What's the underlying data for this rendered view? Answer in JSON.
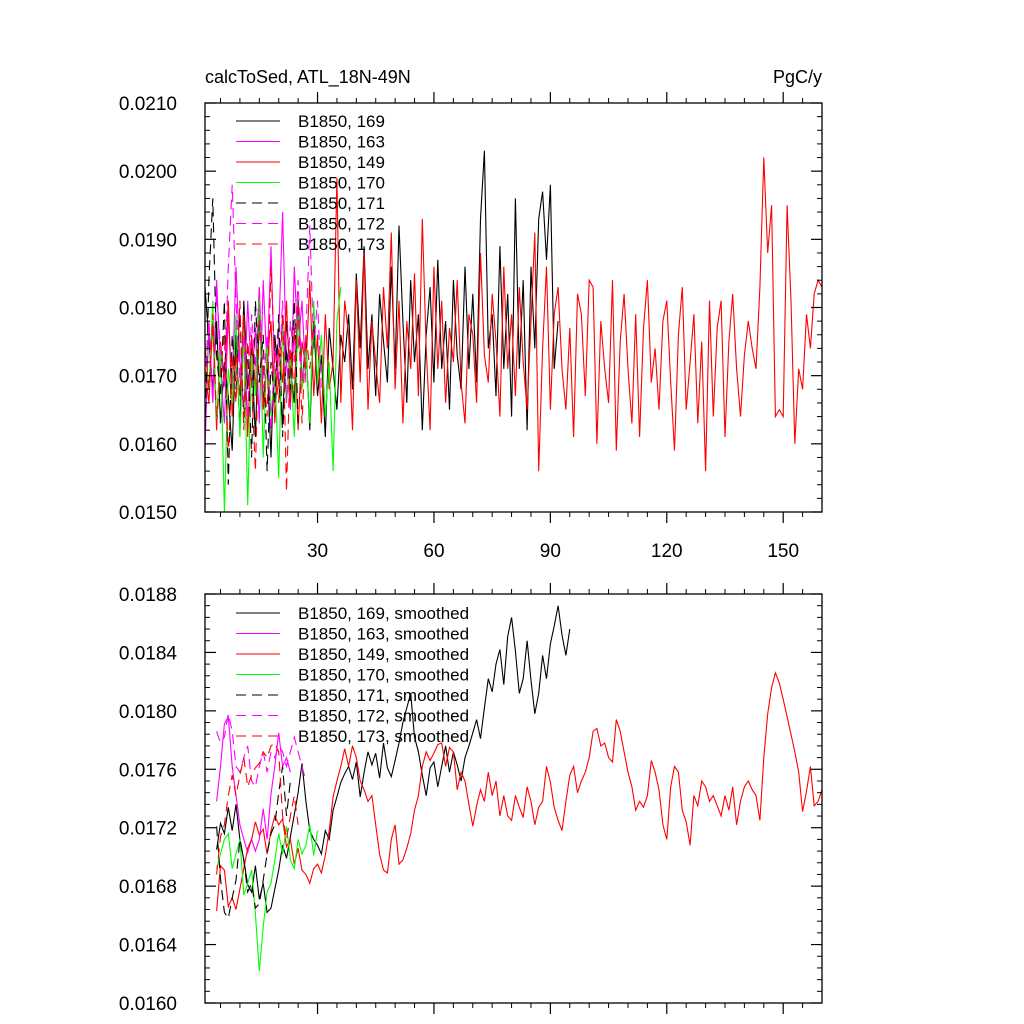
{
  "figure": {
    "title_left": "calcToSed, ATL_18N-49N",
    "title_right": "PgC/y"
  },
  "chart_data": [
    {
      "type": "line",
      "title": "calcToSed, ATL_18N-49N",
      "units": "PgC/y",
      "xlim": [
        1,
        160
      ],
      "ylim": [
        0.015,
        0.021
      ],
      "xticks": [
        30,
        60,
        90,
        120,
        150
      ],
      "xtick_labels": [
        "30",
        "60",
        "90",
        "120",
        "150"
      ],
      "yticks": [
        0.015,
        0.016,
        0.017,
        0.018,
        0.019,
        0.02,
        0.021
      ],
      "ytick_labels": [
        "0.0150",
        "0.0160",
        "0.0170",
        "0.0180",
        "0.0190",
        "0.0200",
        "0.0210"
      ],
      "legend_position": "top-left",
      "series": [
        {
          "name": "B1850, 169",
          "color": "#000000",
          "dash": "solid",
          "x_start": 1,
          "values": [
            0.0183,
            0.0175,
            0.0168,
            0.0178,
            0.0163,
            0.0172,
            0.0167,
            0.0159,
            0.0176,
            0.0162,
            0.0181,
            0.0168,
            0.0174,
            0.0161,
            0.0179,
            0.0166,
            0.0172,
            0.0158,
            0.0176,
            0.0169,
            0.0163,
            0.0178,
            0.0171,
            0.0166,
            0.0181,
            0.0169,
            0.0175,
            0.0162,
            0.0178,
            0.0167,
            0.0173,
            0.0161,
            0.0177,
            0.0171,
            0.0165,
            0.0176,
            0.0172,
            0.0179,
            0.0168,
            0.0185,
            0.0174,
            0.0189,
            0.0171,
            0.0179,
            0.0167,
            0.0182,
            0.0175,
            0.0169,
            0.0186,
            0.0171,
            0.0192,
            0.0178,
            0.0166,
            0.0184,
            0.0172,
            0.0179,
            0.0162,
            0.0176,
            0.0183,
            0.0169,
            0.0187,
            0.0171,
            0.0178,
            0.0165,
            0.0184,
            0.0173,
            0.0168,
            0.0186,
            0.0171,
            0.0182,
            0.0169,
            0.0193,
            0.0203,
            0.0174,
            0.0179,
            0.0167,
            0.0189,
            0.0171,
            0.0182,
            0.0164,
            0.0196,
            0.0171,
            0.0184,
            0.0162,
            0.0186,
            0.0174,
            0.0193,
            0.0197,
            0.0187,
            0.0198,
            0.0171,
            0.0178
          ]
        },
        {
          "name": "B1850, 163",
          "color": "#ff00ff",
          "dash": "solid",
          "x_start": 1,
          "values": [
            0.0159,
            0.0178,
            0.0166,
            0.0184,
            0.0171,
            0.0163,
            0.0179,
            0.0168,
            0.0186,
            0.0172,
            0.0165,
            0.0181,
            0.0169,
            0.0177,
            0.0163,
            0.0184,
            0.0171,
            0.0189,
            0.0168,
            0.0176,
            0.0194,
            0.0172,
            0.0165,
            0.0186,
            0.0174,
            0.0181,
            0.0169
          ]
        },
        {
          "name": "B1850, 149",
          "color": "#ff0000",
          "dash": "solid",
          "x_start": 1,
          "values": [
            0.0171,
            0.0166,
            0.0178,
            0.0162,
            0.0175,
            0.0169,
            0.0181,
            0.0164,
            0.0173,
            0.0167,
            0.0179,
            0.0161,
            0.0176,
            0.0168,
            0.0183,
            0.0165,
            0.0172,
            0.0178,
            0.0163,
            0.0174,
            0.0169,
            0.0181,
            0.0166,
            0.0177,
            0.0162,
            0.0175,
            0.0171,
            0.0184,
            0.0167,
            0.0176,
            0.0163,
            0.0179,
            0.0168,
            0.0172,
            0.0199,
            0.0166,
            0.0181,
            0.0176,
            0.0162,
            0.0184,
            0.0169,
            0.0188,
            0.0165,
            0.0178,
            0.0172,
            0.0166,
            0.0183,
            0.0174,
            0.0191,
            0.0168,
            0.0181,
            0.0163,
            0.0178,
            0.0171,
            0.0185,
            0.0167,
            0.0193,
            0.0174,
            0.0162,
            0.0186,
            0.0171,
            0.0181,
            0.0166,
            0.0177,
            0.0172,
            0.0184,
            0.0169,
            0.0163,
            0.0179,
            0.0176,
            0.0166,
            0.0188,
            0.0173,
            0.0169,
            0.0182,
            0.0175,
            0.0164,
            0.0186,
            0.0171,
            0.0179,
            0.0167,
            0.0183,
            0.0172,
            0.0165,
            0.0178,
            0.0191,
            0.0156,
            0.0174,
            0.0186,
            0.0165,
            0.0179,
            0.0183,
            0.0171,
            0.0165,
            0.0177,
            0.0161,
            0.0182,
            0.0179,
            0.0167,
            0.0184,
            0.0183,
            0.016,
            0.0178,
            0.0171,
            0.0166,
            0.0184,
            0.0159,
            0.0175,
            0.0182,
            0.0171,
            0.0163,
            0.0179,
            0.0161,
            0.0177,
            0.0184,
            0.0169,
            0.0174,
            0.0165,
            0.0178,
            0.0181,
            0.0169,
            0.0159,
            0.0176,
            0.0183,
            0.0165,
            0.0172,
            0.0179,
            0.0163,
            0.0175,
            0.0156,
            0.0181,
            0.0164,
            0.0177,
            0.0181,
            0.0161,
            0.0175,
            0.0182,
            0.0171,
            0.0164,
            0.0173,
            0.0178,
            0.0174,
            0.0171,
            0.0183,
            0.0202,
            0.0188,
            0.0195,
            0.0164,
            0.0165,
            0.0164,
            0.0195,
            0.0181,
            0.016,
            0.0171,
            0.0168,
            0.0179,
            0.0174,
            0.0182,
            0.0184,
            0.0183
          ]
        },
        {
          "name": "B1850, 170",
          "color": "#00ff00",
          "dash": "solid",
          "x_start": 1,
          "values": [
            0.0175,
            0.0168,
            0.0181,
            0.0163,
            0.0174,
            0.015,
            0.0171,
            0.0166,
            0.0179,
            0.0161,
            0.0176,
            0.0151,
            0.0173,
            0.0167,
            0.0182,
            0.0158,
            0.0175,
            0.0164,
            0.0171,
            0.0155,
            0.0178,
            0.0166,
            0.0173,
            0.0161,
            0.0179,
            0.0168,
            0.0174,
            0.0163,
            0.0181,
            0.0169,
            0.0176,
            0.0164,
            0.0172,
            0.0156,
            0.0178,
            0.0183
          ]
        },
        {
          "name": "B1850, 171",
          "color": "#000000",
          "dash": "dash",
          "x_start": 1,
          "values": [
            0.0162,
            0.0184,
            0.0196,
            0.0173,
            0.0167,
            0.0181,
            0.0154,
            0.0176,
            0.0168,
            0.0179,
            0.0163,
            0.0174,
            0.0158,
            0.0181,
            0.0169,
            0.0176,
            0.0156,
            0.0172,
            0.0166,
            0.0179,
            0.0161,
            0.0174,
            0.0168,
            0.0181,
            0.0163
          ]
        },
        {
          "name": "B1850, 172",
          "color": "#ff00ff",
          "dash": "dash",
          "x_start": 1,
          "values": [
            0.0169,
            0.0178,
            0.0166,
            0.0182,
            0.0174,
            0.0168,
            0.0186,
            0.0198,
            0.0181,
            0.0169,
            0.0176,
            0.0164,
            0.0179,
            0.0171,
            0.0183,
            0.0168,
            0.0176,
            0.0162,
            0.0174,
            0.0169,
            0.0181,
            0.0166,
            0.0178,
            0.0172,
            0.0184,
            0.0169,
            0.0176,
            0.0192,
            0.0174,
            0.0181,
            0.0168
          ]
        },
        {
          "name": "B1850, 173",
          "color": "#ff0000",
          "dash": "dash",
          "x_start": 1,
          "values": [
            0.0174,
            0.0168,
            0.0179,
            0.0163,
            0.0171,
            0.0176,
            0.0158,
            0.0173,
            0.0166,
            0.0181,
            0.0162,
            0.0175,
            0.0169,
            0.0156,
            0.0178,
            0.0171,
            0.0164,
            0.0186,
            0.0172,
            0.0166,
            0.0179,
            0.0153,
            0.0174,
            0.0168,
            0.0181,
            0.0163,
            0.0176,
            0.0171,
            0.0178
          ]
        }
      ]
    },
    {
      "type": "line",
      "xlim": [
        1,
        160
      ],
      "ylim": [
        0.016,
        0.0188
      ],
      "xticks": [
        30,
        60,
        90,
        120,
        150
      ],
      "yticks": [
        0.016,
        0.0164,
        0.0168,
        0.0172,
        0.0176,
        0.018,
        0.0184,
        0.0188
      ],
      "ytick_labels": [
        "0.0160",
        "0.0164",
        "0.0168",
        "0.0172",
        "0.0176",
        "0.0180",
        "0.0184",
        "0.0188"
      ],
      "legend_position": "top-left",
      "series": [
        {
          "name": "B1850, 169, smoothed",
          "color": "#000000",
          "dash": "solid",
          "x_start": 4,
          "values": [
            0.01705,
            0.01723,
            0.01716,
            0.01734,
            0.01718,
            0.01736,
            0.01712,
            0.01698,
            0.01681,
            0.01676,
            0.01694,
            0.01671,
            0.01682,
            0.01662,
            0.01665,
            0.01678,
            0.01691,
            0.01708,
            0.01699,
            0.01714,
            0.01729,
            0.01744,
            0.01764,
            0.01738,
            0.01718,
            0.01712,
            0.01708,
            0.01702,
            0.01718,
            0.01712,
            0.01732,
            0.01741,
            0.01751,
            0.01757,
            0.01762,
            0.01753,
            0.01765,
            0.01741,
            0.01758,
            0.01772,
            0.01763,
            0.01771,
            0.01754,
            0.01778,
            0.01761,
            0.01755,
            0.01766,
            0.01778,
            0.01792,
            0.01802,
            0.01812,
            0.01782,
            0.01772,
            0.01756,
            0.01742,
            0.01761,
            0.01765,
            0.01748,
            0.01762,
            0.01776,
            0.01758,
            0.01772,
            0.01763,
            0.01752,
            0.01768,
            0.01776,
            0.01785,
            0.01794,
            0.01781,
            0.01802,
            0.01822,
            0.01813,
            0.01832,
            0.01842,
            0.01818,
            0.01851,
            0.01864,
            0.01841,
            0.01812,
            0.01822,
            0.01848,
            0.01821,
            0.01798,
            0.01812,
            0.01838,
            0.01822,
            0.01846,
            0.01858,
            0.01872,
            0.01852,
            0.01838,
            0.01856
          ]
        },
        {
          "name": "B1850, 163, smoothed",
          "color": "#ff00ff",
          "dash": "solid",
          "x_start": 4,
          "values": [
            0.01738,
            0.01762,
            0.01791,
            0.01796,
            0.01762,
            0.01742,
            0.01722,
            0.01712,
            0.01703,
            0.01712,
            0.01704,
            0.01712,
            0.01733,
            0.01712,
            0.01743,
            0.01762,
            0.01785,
            0.01762,
            0.01768,
            0.01758
          ]
        },
        {
          "name": "B1850, 149, smoothed",
          "color": "#ff0000",
          "dash": "solid",
          "x_start": 4,
          "values": [
            0.01663,
            0.01694,
            0.01691,
            0.01666,
            0.01672,
            0.01664,
            0.01678,
            0.01692,
            0.01706,
            0.01712,
            0.01724,
            0.01715,
            0.01719,
            0.01702,
            0.01718,
            0.01728,
            0.01722,
            0.01726,
            0.01707,
            0.01712,
            0.01695,
            0.01706,
            0.01691,
            0.01688,
            0.01682,
            0.01692,
            0.01695,
            0.01689,
            0.01701,
            0.01718,
            0.01741,
            0.01752,
            0.01762,
            0.01774,
            0.01762,
            0.01776,
            0.01768,
            0.01752,
            0.01746,
            0.01738,
            0.01742,
            0.01722,
            0.01702,
            0.01691,
            0.01689,
            0.01712,
            0.01722,
            0.01695,
            0.01698,
            0.01706,
            0.01716,
            0.01732,
            0.01742,
            0.01762,
            0.01772,
            0.01766,
            0.01771,
            0.01777,
            0.01778,
            0.01762,
            0.01775,
            0.01772,
            0.01746,
            0.01758,
            0.01752,
            0.01736,
            0.01721,
            0.01735,
            0.01746,
            0.01738,
            0.01758,
            0.01742,
            0.01752,
            0.01728,
            0.01742,
            0.01728,
            0.01725,
            0.01742,
            0.01734,
            0.01727,
            0.01748,
            0.01738,
            0.01722,
            0.01734,
            0.01738,
            0.01762,
            0.01751,
            0.01734,
            0.01725,
            0.01718,
            0.01738,
            0.01756,
            0.01762,
            0.01744,
            0.01752,
            0.01758,
            0.01768,
            0.01786,
            0.01788,
            0.01776,
            0.01778,
            0.01768,
            0.01765,
            0.01794,
            0.01786,
            0.01772,
            0.01758,
            0.01748,
            0.01732,
            0.01738,
            0.01734,
            0.01742,
            0.01766,
            0.01758,
            0.01746,
            0.01722,
            0.01712,
            0.01748,
            0.01762,
            0.01758,
            0.01732,
            0.01724,
            0.01708,
            0.01742,
            0.01735,
            0.01752,
            0.01748,
            0.01738,
            0.01742,
            0.01735,
            0.01728,
            0.01742,
            0.01732,
            0.01748,
            0.01722,
            0.01738,
            0.01748,
            0.01752,
            0.01746,
            0.01742,
            0.01725,
            0.01768,
            0.01798,
            0.01816,
            0.01826,
            0.01819,
            0.01808,
            0.01796,
            0.01784,
            0.01772,
            0.01758,
            0.01731,
            0.01745,
            0.01762,
            0.01735,
            0.01738,
            0.01746,
            0.01776
          ]
        },
        {
          "name": "B1850, 170, smoothed",
          "color": "#00ff00",
          "dash": "solid",
          "x_start": 4,
          "values": [
            0.01692,
            0.01702,
            0.01712,
            0.01716,
            0.01692,
            0.01702,
            0.01712,
            0.01674,
            0.01682,
            0.01691,
            0.01661,
            0.01622,
            0.01652,
            0.01676,
            0.01682,
            0.01698,
            0.01716,
            0.01702,
            0.01721,
            0.01698,
            0.01692,
            0.01712,
            0.01702,
            0.01708,
            0.01722,
            0.01701,
            0.01718
          ]
        },
        {
          "name": "B1850, 171, smoothed",
          "color": "#000000",
          "dash": "dash",
          "x_start": 4,
          "values": [
            0.01721,
            0.01685,
            0.01662,
            0.01658,
            0.01672,
            0.01684,
            0.01712,
            0.01698,
            0.01676,
            0.01682,
            0.01665,
            0.01668,
            0.01684,
            0.01702,
            0.01716,
            0.01722,
            0.01744,
            0.01762,
            0.01728,
            0.01752
          ]
        },
        {
          "name": "B1850, 172, smoothed",
          "color": "#ff00ff",
          "dash": "dash",
          "x_start": 4,
          "values": [
            0.01786,
            0.01778,
            0.01782,
            0.01798,
            0.01786,
            0.01762,
            0.01758,
            0.01768,
            0.01776,
            0.01752,
            0.01748,
            0.01762,
            0.01772,
            0.01758,
            0.01772,
            0.01768,
            0.01776,
            0.01772,
            0.01762,
            0.01772,
            0.01782,
            0.01772,
            0.01762,
            0.01752
          ]
        },
        {
          "name": "B1850, 173, smoothed",
          "color": "#ff0000",
          "dash": "dash",
          "x_start": 4,
          "values": [
            0.01688,
            0.01714,
            0.01722,
            0.01742,
            0.01756,
            0.01742,
            0.01756,
            0.01768,
            0.01748,
            0.01756,
            0.01761,
            0.01764,
            0.01772,
            0.01768,
            0.01776,
            0.01778,
            0.01772,
            0.01728,
            0.01712,
            0.01728,
            0.01742,
            0.01722
          ]
        }
      ]
    }
  ]
}
